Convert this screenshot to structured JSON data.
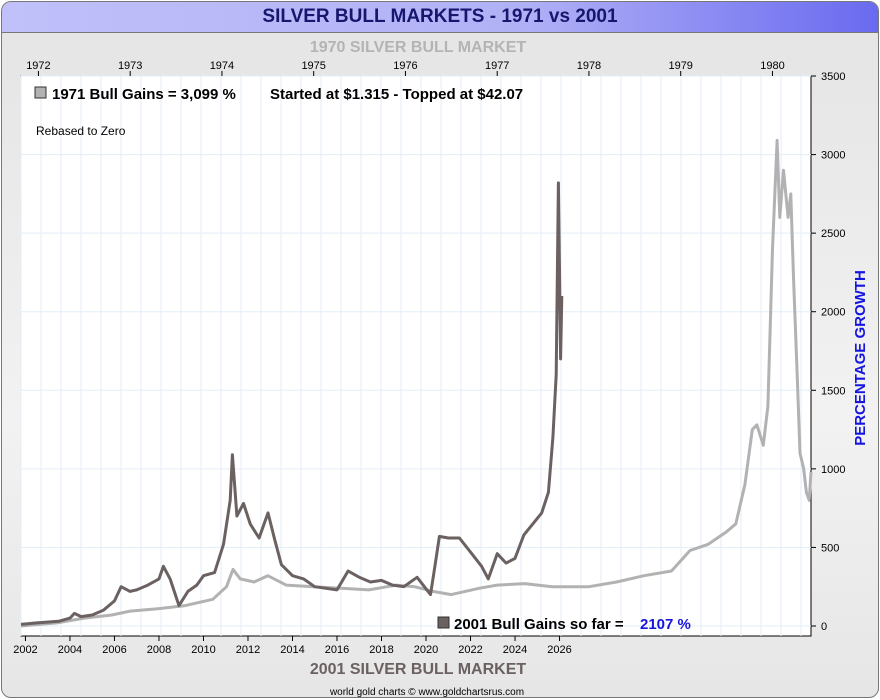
{
  "chart_data": {
    "type": "line",
    "title": "SILVER BULL MARKETS - 1971 vs 2001",
    "top_axis_title": "1970 SILVER BULL MARKET",
    "bottom_axis_title": "2001 SILVER BULL MARKET",
    "ylabel": "PERCENTAGE GROWTH",
    "ylim": [
      0,
      3500
    ],
    "yticks": [
      0,
      500,
      1000,
      1500,
      2000,
      2500,
      3000,
      3500
    ],
    "top_xticks": [
      1972,
      1973,
      1974,
      1975,
      1976,
      1977,
      1978,
      1979,
      1980
    ],
    "top_xlim": [
      1971.81,
      1980.42
    ],
    "bottom_xticks": [
      2002,
      2004,
      2006,
      2008,
      2010,
      2012,
      2014,
      2016,
      2018,
      2020,
      2022,
      2024,
      2026
    ],
    "bottom_xlim": [
      2001.8,
      2037.3
    ],
    "annotations": {
      "legend_1971": "1971 Bull Gains = 3,099 %",
      "started": "Started at $1.315 - Topped at $42.07",
      "rebased": "Rebased to Zero",
      "legend_2001": "2001 Bull Gains so far =",
      "gain_2001": "2107 %",
      "credit": "world gold charts © www.goldchartsrus.com"
    },
    "colors": {
      "s1971": "#b2b2b2",
      "s2001": "#6b6161",
      "ylabel": "#1515e0",
      "gain": "#1515e0"
    },
    "series": [
      {
        "name": "1971 Bull",
        "axis": "top",
        "points": [
          [
            1971.81,
            0
          ],
          [
            1972.2,
            20
          ],
          [
            1972.5,
            50
          ],
          [
            1972.8,
            70
          ],
          [
            1973,
            95
          ],
          [
            1973.3,
            110
          ],
          [
            1973.6,
            130
          ],
          [
            1973.9,
            170
          ],
          [
            1974.05,
            250
          ],
          [
            1974.12,
            360
          ],
          [
            1974.2,
            300
          ],
          [
            1974.35,
            280
          ],
          [
            1974.5,
            320
          ],
          [
            1974.7,
            260
          ],
          [
            1975,
            250
          ],
          [
            1975.3,
            240
          ],
          [
            1975.6,
            230
          ],
          [
            1975.9,
            260
          ],
          [
            1976.1,
            250
          ],
          [
            1976.3,
            220
          ],
          [
            1976.5,
            200
          ],
          [
            1976.8,
            240
          ],
          [
            1977,
            260
          ],
          [
            1977.3,
            270
          ],
          [
            1977.6,
            250
          ],
          [
            1978,
            250
          ],
          [
            1978.3,
            280
          ],
          [
            1978.6,
            320
          ],
          [
            1978.9,
            350
          ],
          [
            1979.1,
            480
          ],
          [
            1979.3,
            520
          ],
          [
            1979.5,
            600
          ],
          [
            1979.6,
            650
          ],
          [
            1979.7,
            900
          ],
          [
            1979.78,
            1250
          ],
          [
            1979.83,
            1280
          ],
          [
            1979.9,
            1150
          ],
          [
            1979.95,
            1400
          ],
          [
            1980.0,
            2400
          ],
          [
            1980.05,
            3090
          ],
          [
            1980.08,
            2600
          ],
          [
            1980.12,
            2900
          ],
          [
            1980.17,
            2600
          ],
          [
            1980.2,
            2750
          ],
          [
            1980.23,
            2200
          ],
          [
            1980.27,
            1600
          ],
          [
            1980.3,
            1100
          ],
          [
            1980.34,
            1000
          ],
          [
            1980.37,
            850
          ],
          [
            1980.4,
            800
          ],
          [
            1980.42,
            980
          ]
        ]
      },
      {
        "name": "2001 Bull",
        "axis": "bottom",
        "points": [
          [
            2001.8,
            10
          ],
          [
            2002.5,
            20
          ],
          [
            2003.5,
            30
          ],
          [
            2004,
            50
          ],
          [
            2004.2,
            80
          ],
          [
            2004.5,
            60
          ],
          [
            2005,
            70
          ],
          [
            2005.5,
            100
          ],
          [
            2006,
            160
          ],
          [
            2006.3,
            250
          ],
          [
            2006.7,
            220
          ],
          [
            2007,
            230
          ],
          [
            2007.5,
            260
          ],
          [
            2008,
            300
          ],
          [
            2008.2,
            380
          ],
          [
            2008.5,
            300
          ],
          [
            2008.9,
            130
          ],
          [
            2009.3,
            220
          ],
          [
            2009.7,
            260
          ],
          [
            2010,
            320
          ],
          [
            2010.5,
            340
          ],
          [
            2010.9,
            520
          ],
          [
            2011.2,
            800
          ],
          [
            2011.3,
            1090
          ],
          [
            2011.5,
            700
          ],
          [
            2011.8,
            780
          ],
          [
            2012.1,
            650
          ],
          [
            2012.5,
            560
          ],
          [
            2012.9,
            720
          ],
          [
            2013.2,
            550
          ],
          [
            2013.5,
            390
          ],
          [
            2014,
            320
          ],
          [
            2014.5,
            300
          ],
          [
            2015,
            250
          ],
          [
            2015.5,
            240
          ],
          [
            2016,
            230
          ],
          [
            2016.5,
            350
          ],
          [
            2017,
            310
          ],
          [
            2017.5,
            280
          ],
          [
            2018,
            290
          ],
          [
            2018.5,
            260
          ],
          [
            2019,
            250
          ],
          [
            2019.6,
            310
          ],
          [
            2020.2,
            200
          ],
          [
            2020.4,
            380
          ],
          [
            2020.6,
            570
          ],
          [
            2021,
            560
          ],
          [
            2021.5,
            560
          ],
          [
            2022,
            470
          ],
          [
            2022.5,
            380
          ],
          [
            2022.8,
            300
          ],
          [
            2023.2,
            460
          ],
          [
            2023.6,
            400
          ],
          [
            2024,
            430
          ],
          [
            2024.4,
            580
          ],
          [
            2024.8,
            650
          ],
          [
            2025.2,
            720
          ],
          [
            2025.5,
            850
          ],
          [
            2025.7,
            1200
          ],
          [
            2025.85,
            1600
          ],
          [
            2025.95,
            2820
          ],
          [
            2026.05,
            1700
          ],
          [
            2026.1,
            2100
          ]
        ]
      }
    ]
  }
}
